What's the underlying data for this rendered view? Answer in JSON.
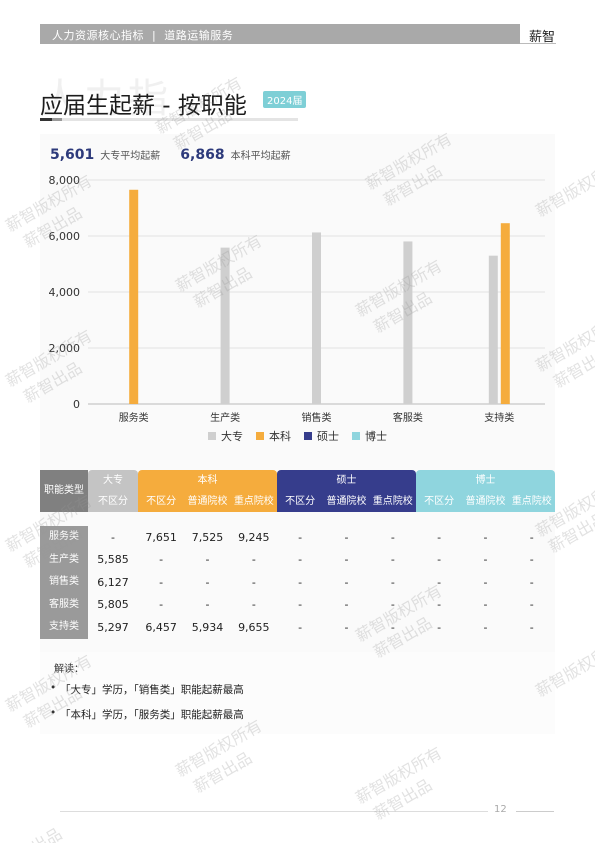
{
  "header": {
    "section": "人力资源核心指标",
    "subsection": "道路运输服务",
    "brand": "薪智"
  },
  "page": {
    "title": "应届生起薪 - 按职能",
    "year_badge": "2024届",
    "page_number": "12",
    "bg_watermark": "人力指"
  },
  "averages": [
    {
      "value": "5,601",
      "label": "大专平均起薪"
    },
    {
      "value": "6,868",
      "label": "本科平均起薪"
    }
  ],
  "chart_data": {
    "type": "bar",
    "categories": [
      "服务类",
      "生产类",
      "销售类",
      "客服类",
      "支持类"
    ],
    "series": [
      {
        "name": "大专",
        "color": "#cfcfcf",
        "values": [
          null,
          5585,
          6127,
          5805,
          5297
        ]
      },
      {
        "name": "本科",
        "color": "#f5ac3d",
        "values": [
          7651,
          null,
          null,
          null,
          6457
        ]
      },
      {
        "name": "硕士",
        "color": "#363d8c",
        "values": [
          null,
          null,
          null,
          null,
          null
        ]
      },
      {
        "name": "博士",
        "color": "#8fd5de",
        "values": [
          null,
          null,
          null,
          null,
          null
        ]
      }
    ],
    "yticks": [
      "8,000",
      "6,000",
      "4,000",
      "2,000",
      "0"
    ],
    "ylim": [
      0,
      8000
    ],
    "grid": true,
    "legend": "bottom"
  },
  "table": {
    "row_header": "职能类型",
    "groups": [
      {
        "name": "大专",
        "subs": [
          "不区分"
        ]
      },
      {
        "name": "本科",
        "subs": [
          "不区分",
          "普通院校",
          "重点院校"
        ]
      },
      {
        "name": "硕士",
        "subs": [
          "不区分",
          "普通院校",
          "重点院校"
        ]
      },
      {
        "name": "博士",
        "subs": [
          "不区分",
          "普通院校",
          "重点院校"
        ]
      }
    ],
    "rows": [
      {
        "label": "服务类",
        "cells": [
          "-",
          "7,651",
          "7,525",
          "9,245",
          "-",
          "-",
          "-",
          "-",
          "-",
          "-"
        ]
      },
      {
        "label": "生产类",
        "cells": [
          "5,585",
          "-",
          "-",
          "-",
          "-",
          "-",
          "-",
          "-",
          "-",
          "-"
        ]
      },
      {
        "label": "销售类",
        "cells": [
          "6,127",
          "-",
          "-",
          "-",
          "-",
          "-",
          "-",
          "-",
          "-",
          "-"
        ]
      },
      {
        "label": "客服类",
        "cells": [
          "5,805",
          "-",
          "-",
          "-",
          "-",
          "-",
          "-",
          "-",
          "-",
          "-"
        ]
      },
      {
        "label": "支持类",
        "cells": [
          "5,297",
          "6,457",
          "5,934",
          "9,655",
          "-",
          "-",
          "-",
          "-",
          "-",
          "-"
        ]
      }
    ]
  },
  "notes": {
    "title": "解读：",
    "items": [
      "「大专」学历，「销售类」职能起薪最高",
      "「本科」学历，「服务类」职能起薪最高"
    ]
  },
  "watermarks": [
    "薪智版权所有",
    "薪智出品"
  ]
}
